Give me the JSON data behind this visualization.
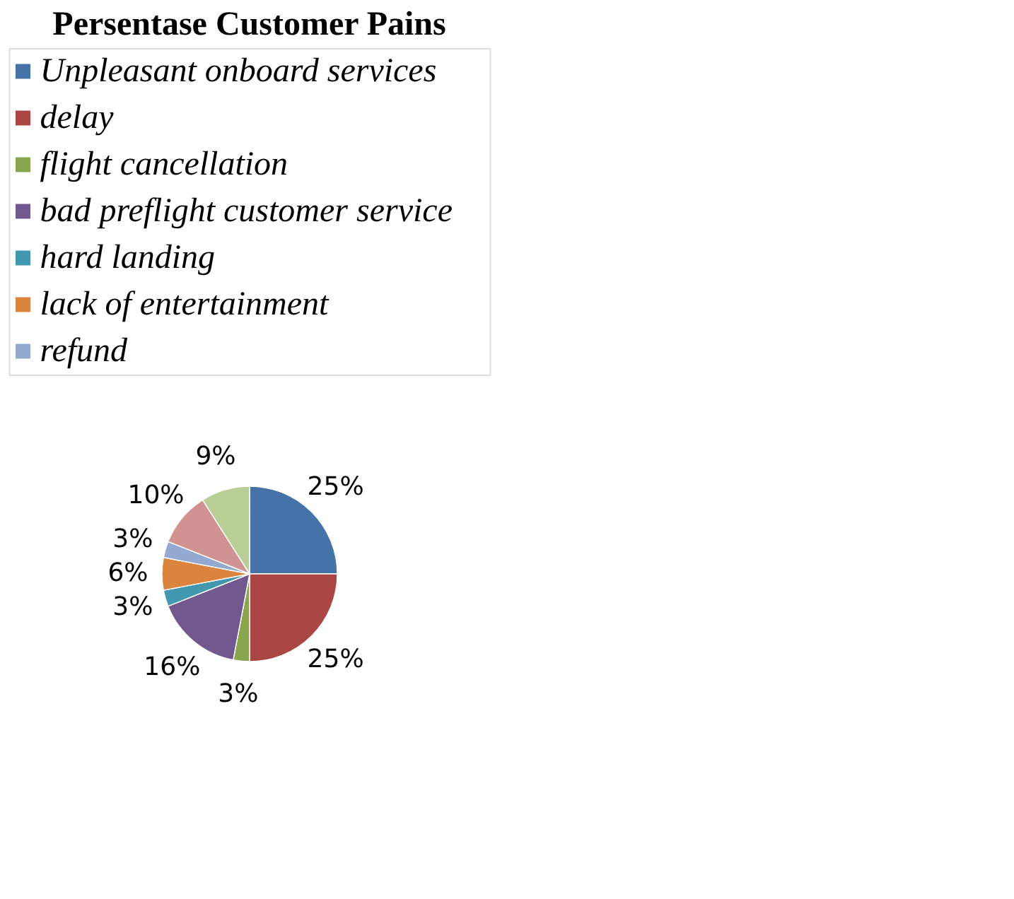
{
  "chart_data": {
    "type": "pie",
    "title": "Persentase Customer Pains",
    "categories": [
      "Unpleasant onboard services",
      "delay",
      "flight cancellation",
      "bad preflight customer service",
      "hard landing",
      "lack of entertainment",
      "refund",
      null,
      null
    ],
    "values": [
      25,
      25,
      3,
      16,
      3,
      6,
      3,
      10,
      9
    ],
    "value_labels": [
      "25%",
      "25%",
      "3%",
      "16%",
      "3%",
      "6%",
      "3%",
      "10%",
      "9%"
    ],
    "colors": [
      "#4572a7",
      "#aa4643",
      "#89a54e",
      "#71588f",
      "#4198af",
      "#db843d",
      "#93a9cf",
      "#d19392",
      "#b9cd96"
    ],
    "legend": "top"
  }
}
